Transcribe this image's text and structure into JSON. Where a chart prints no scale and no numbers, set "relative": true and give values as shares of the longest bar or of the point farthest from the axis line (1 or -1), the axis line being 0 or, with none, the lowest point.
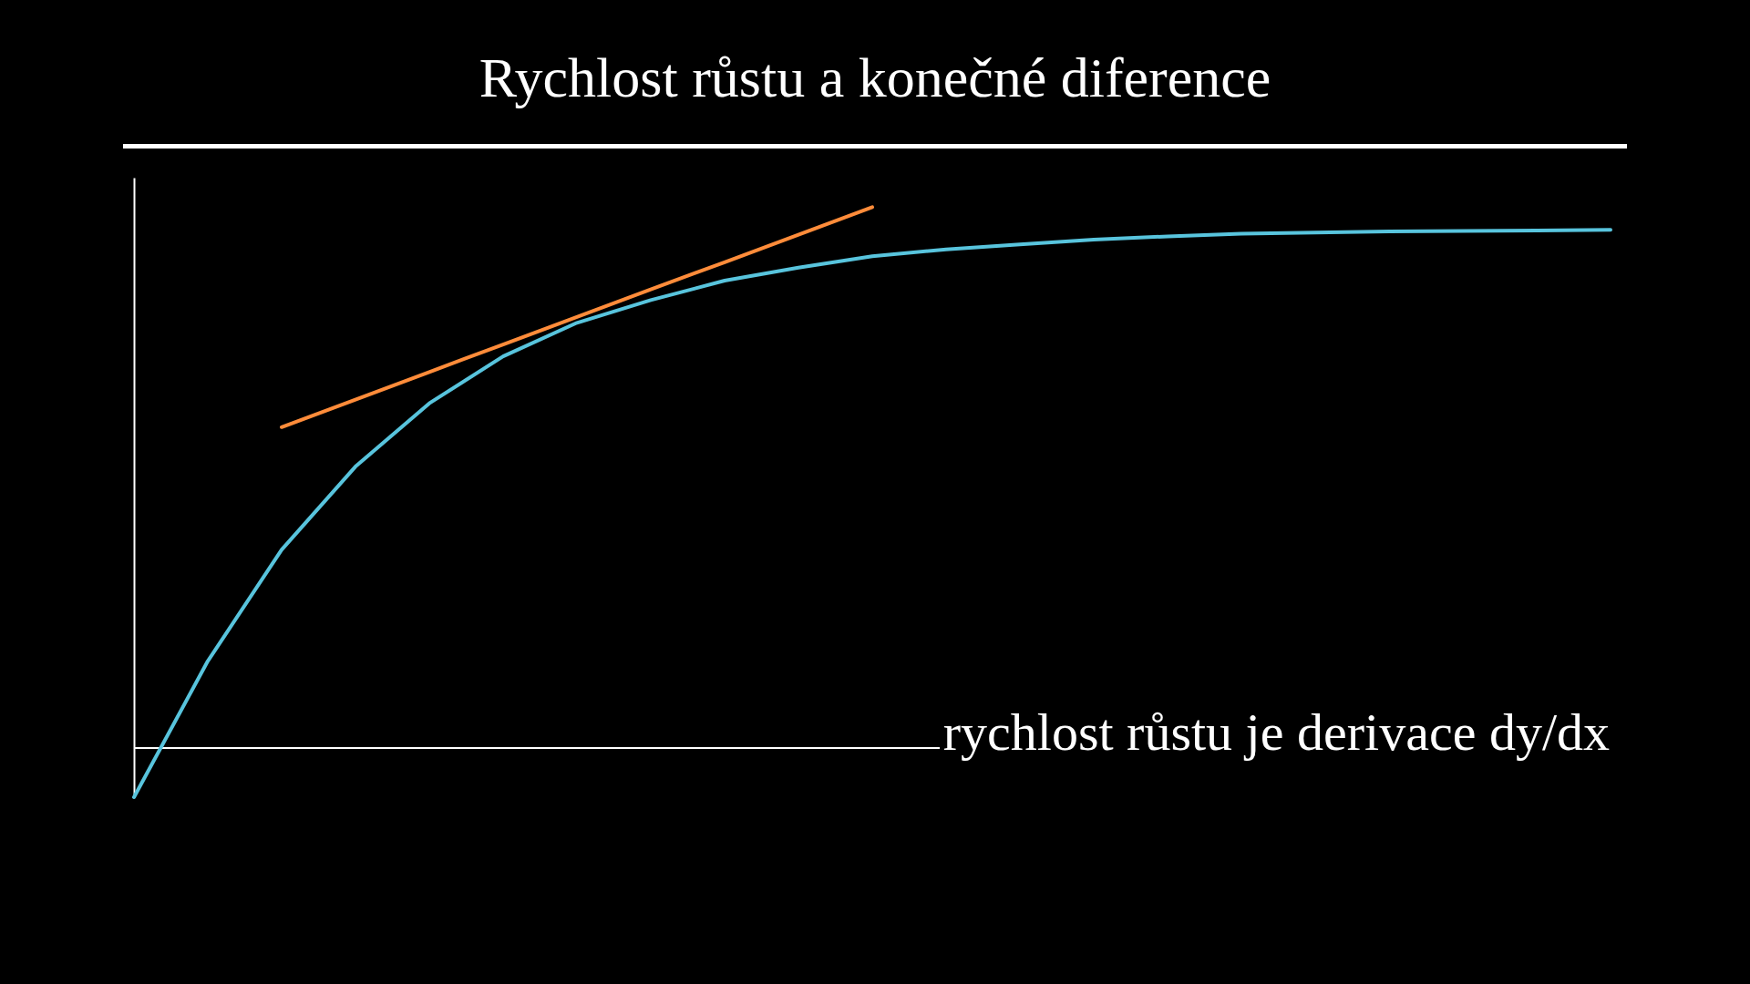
{
  "chart_data": {
    "type": "line",
    "title": "Rychlost růstu a konečné diference",
    "relative": true,
    "annotations": [
      "rychlost růstu je derivace dy/dx"
    ],
    "categories": [
      null,
      null,
      null,
      null,
      null,
      null,
      null,
      null,
      null,
      null,
      null,
      null,
      null,
      null,
      null,
      null,
      null,
      null,
      null,
      null,
      null
    ],
    "series": [
      {
        "color": "#58c4dd",
        "values": [
          -0.092,
          0.16,
          0.366,
          0.52,
          0.637,
          0.724,
          0.786,
          0.828,
          0.864,
          0.888,
          0.909,
          0.922,
          0.931,
          0.94,
          0.946,
          0.951,
          0.953,
          0.955,
          0.956,
          0.957,
          0.958
        ]
      },
      {
        "color": "#ff8c3a",
        "values": [
          null,
          null,
          0.593,
          0.644,
          0.695,
          0.746,
          0.797,
          0.848,
          0.898,
          0.949,
          1.0,
          null,
          null,
          null,
          null,
          null,
          null,
          null,
          null,
          null,
          null
        ]
      }
    ]
  }
}
